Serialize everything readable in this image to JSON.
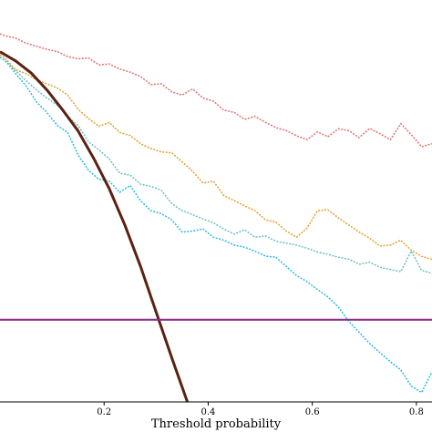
{
  "chart_data": {
    "type": "line",
    "xlabel": "Threshold probability",
    "ylabel": "",
    "title": "",
    "xlim": [
      0.0,
      0.83
    ],
    "ylim": [
      -0.52,
      0.8
    ],
    "xticks": [
      0.2,
      0.4,
      0.6,
      0.8
    ],
    "xtick_labels": [
      "0.2",
      "0.4",
      "0.6",
      "0.8"
    ],
    "grid": false,
    "legend": "none",
    "series": [
      {
        "color": "#e07070",
        "style": "dotted",
        "x": [
          0.0,
          0.01,
          0.03,
          0.05,
          0.07,
          0.09,
          0.11,
          0.13,
          0.15,
          0.17,
          0.19,
          0.21,
          0.23,
          0.25,
          0.27,
          0.29,
          0.31,
          0.33,
          0.35,
          0.37,
          0.39,
          0.41,
          0.43,
          0.45,
          0.47,
          0.49,
          0.51,
          0.53,
          0.55,
          0.57,
          0.59,
          0.61,
          0.63,
          0.65,
          0.67,
          0.69,
          0.71,
          0.73,
          0.75,
          0.77,
          0.79,
          0.81,
          0.83
        ],
        "y": [
          0.689,
          0.682,
          0.675,
          0.658,
          0.648,
          0.638,
          0.631,
          0.614,
          0.607,
          0.61,
          0.587,
          0.59,
          0.573,
          0.563,
          0.549,
          0.522,
          0.525,
          0.498,
          0.488,
          0.508,
          0.478,
          0.468,
          0.438,
          0.431,
          0.408,
          0.418,
          0.398,
          0.381,
          0.371,
          0.354,
          0.341,
          0.367,
          0.351,
          0.377,
          0.371,
          0.348,
          0.378,
          0.361,
          0.341,
          0.394,
          0.358,
          0.318,
          0.328
        ]
      },
      {
        "color": "#e0a030",
        "style": "dotted",
        "x": [
          0.0,
          0.01,
          0.03,
          0.05,
          0.07,
          0.09,
          0.11,
          0.13,
          0.15,
          0.17,
          0.19,
          0.21,
          0.23,
          0.25,
          0.27,
          0.29,
          0.31,
          0.33,
          0.35,
          0.37,
          0.39,
          0.41,
          0.43,
          0.45,
          0.47,
          0.49,
          0.51,
          0.53,
          0.55,
          0.57,
          0.59,
          0.61,
          0.63,
          0.65,
          0.67,
          0.69,
          0.71,
          0.73,
          0.75,
          0.77,
          0.79,
          0.81,
          0.83
        ],
        "y": [
          0.621,
          0.608,
          0.571,
          0.558,
          0.538,
          0.525,
          0.511,
          0.488,
          0.441,
          0.411,
          0.385,
          0.398,
          0.365,
          0.355,
          0.328,
          0.312,
          0.301,
          0.298,
          0.268,
          0.238,
          0.199,
          0.205,
          0.158,
          0.141,
          0.124,
          0.108,
          0.078,
          0.071,
          0.041,
          0.021,
          0.051,
          0.108,
          0.111,
          0.085,
          0.061,
          0.038,
          0.018,
          -0.008,
          -0.005,
          0.011,
          -0.022,
          -0.042,
          -0.052
        ]
      },
      {
        "color": "#6cc0c0",
        "style": "dotted",
        "x": [
          0.0,
          0.01,
          0.03,
          0.05,
          0.07,
          0.09,
          0.11,
          0.13,
          0.15,
          0.17,
          0.19,
          0.21,
          0.23,
          0.25,
          0.27,
          0.29,
          0.31,
          0.33,
          0.35,
          0.37,
          0.39,
          0.41,
          0.43,
          0.45,
          0.47,
          0.49,
          0.51,
          0.53,
          0.55,
          0.57,
          0.59,
          0.61,
          0.63,
          0.65,
          0.67,
          0.69,
          0.71,
          0.73,
          0.75,
          0.77,
          0.79,
          0.81,
          0.83
        ],
        "y": [
          0.612,
          0.601,
          0.568,
          0.535,
          0.505,
          0.478,
          0.455,
          0.418,
          0.388,
          0.335,
          0.308,
          0.278,
          0.231,
          0.225,
          0.195,
          0.188,
          0.175,
          0.131,
          0.108,
          0.095,
          0.081,
          0.068,
          0.048,
          0.031,
          0.045,
          0.021,
          0.025,
          0.008,
          0.001,
          -0.005,
          -0.015,
          -0.028,
          -0.035,
          -0.045,
          -0.051,
          -0.068,
          -0.061,
          -0.078,
          -0.085,
          -0.092,
          -0.025,
          -0.088,
          -0.098
        ]
      },
      {
        "color": "#30b8e0",
        "style": "dotted",
        "x": [
          0.0,
          0.01,
          0.03,
          0.05,
          0.07,
          0.09,
          0.11,
          0.13,
          0.15,
          0.17,
          0.19,
          0.21,
          0.23,
          0.25,
          0.27,
          0.29,
          0.31,
          0.33,
          0.35,
          0.37,
          0.39,
          0.41,
          0.43,
          0.45,
          0.47,
          0.49,
          0.51,
          0.53,
          0.55,
          0.57,
          0.59,
          0.61,
          0.63,
          0.65,
          0.67,
          0.69,
          0.71,
          0.73,
          0.75,
          0.77,
          0.79,
          0.81,
          0.83
        ],
        "y": [
          0.612,
          0.601,
          0.558,
          0.518,
          0.465,
          0.431,
          0.388,
          0.365,
          0.291,
          0.241,
          0.211,
          0.205,
          0.168,
          0.191,
          0.141,
          0.108,
          0.098,
          0.078,
          0.038,
          0.041,
          0.048,
          0.021,
          0.011,
          -0.005,
          -0.012,
          -0.025,
          -0.041,
          -0.045,
          -0.075,
          -0.105,
          -0.125,
          -0.151,
          -0.175,
          -0.208,
          -0.255,
          -0.291,
          -0.328,
          -0.358,
          -0.388,
          -0.415,
          -0.468,
          -0.489,
          -0.421
        ]
      },
      {
        "color": "#5a2212",
        "style": "solid",
        "x": [
          0.0,
          0.03,
          0.06,
          0.09,
          0.12,
          0.15,
          0.18,
          0.21,
          0.24,
          0.27,
          0.3,
          0.33,
          0.36
        ],
        "y": [
          0.63,
          0.6,
          0.56,
          0.505,
          0.44,
          0.37,
          0.28,
          0.18,
          0.06,
          -0.075,
          -0.225,
          -0.375,
          -0.52
        ]
      },
      {
        "color": "#8a2e8a",
        "style": "solid",
        "x": [
          0.0,
          0.83
        ],
        "y": [
          -0.25,
          -0.25
        ]
      }
    ]
  }
}
